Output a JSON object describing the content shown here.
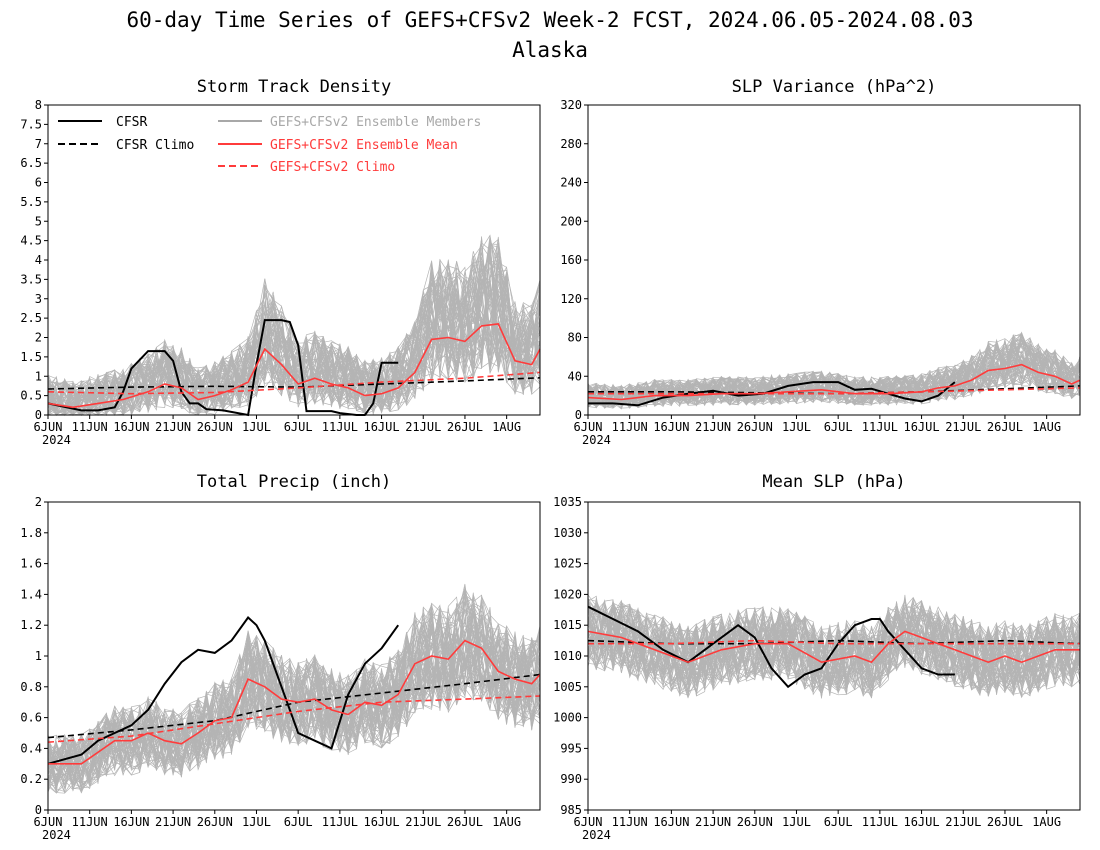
{
  "figure": {
    "title_line1": "60-day Time Series of GEFS+CFSv2 Week-2 FCST, 2024.06.05-2024.08.03",
    "title_line2": "Alaska"
  },
  "colors": {
    "cfsr": "#000000",
    "members": "#a8a8a8",
    "mean": "#ff3b3b",
    "clim_gefs": "#ff3b3b"
  },
  "legend": {
    "cfsr": "CFSR",
    "cfsr_climo": "CFSR Climo",
    "members": "GEFS+CFSv2 Ensemble Members",
    "mean": "GEFS+CFSv2 Ensemble Mean",
    "gefs_climo": "GEFS+CFSv2 Climo"
  },
  "chart_data": [
    {
      "type": "line",
      "title": "Storm Track Density",
      "x_ticks": [
        "6JUN",
        "11JUN",
        "16JUN",
        "21JUN",
        "26JUN",
        "1JUL",
        "6JUL",
        "11JUL",
        "16JUL",
        "21JUL",
        "26JUL",
        "1AUG"
      ],
      "x_year": "2024",
      "ylim": [
        0,
        8
      ],
      "y_ticks": [
        "0",
        "0.5",
        "1",
        "1.5",
        "2",
        "2.5",
        "3",
        "3.5",
        "4",
        "4.5",
        "5",
        "5.5",
        "6",
        "6.5",
        "7",
        "7.5",
        "8"
      ],
      "legend_position": "top-left",
      "series": [
        {
          "name": "CFSR",
          "day": [
            0,
            4,
            6,
            8,
            9,
            10,
            12,
            13,
            14,
            15,
            16,
            17,
            18,
            19,
            21,
            24,
            25,
            26,
            27,
            28,
            29,
            30,
            31,
            32,
            33,
            34,
            35,
            37,
            38,
            39,
            40,
            41,
            42,
            43,
            44,
            46
          ],
          "values": [
            0.3,
            0.12,
            0.12,
            0.2,
            0.6,
            1.2,
            1.65,
            1.65,
            1.65,
            1.4,
            0.6,
            0.3,
            0.3,
            0.15,
            0.12,
            0.0,
            1.3,
            2.45,
            2.45,
            2.45,
            2.4,
            1.8,
            0.1,
            0.1,
            0.1,
            0.1,
            0.05,
            0.0,
            0.0,
            0.3,
            1.35,
            1.35,
            1.35,
            null,
            null,
            null
          ]
        },
        {
          "name": "CFSR Climo",
          "day": [
            0,
            10,
            20,
            30,
            40,
            50,
            59
          ],
          "values": [
            0.67,
            0.72,
            0.74,
            0.72,
            0.8,
            0.88,
            0.96
          ]
        },
        {
          "name": "GEFS+CFSv2 Ensemble Mean",
          "day": [
            0,
            3,
            6,
            9,
            12,
            14,
            16,
            18,
            20,
            22,
            24,
            26,
            28,
            30,
            32,
            34,
            36,
            38,
            40,
            42,
            44,
            46,
            48,
            50,
            52,
            54,
            56,
            58,
            59
          ],
          "values": [
            0.3,
            0.2,
            0.3,
            0.4,
            0.6,
            0.8,
            0.7,
            0.4,
            0.5,
            0.65,
            0.85,
            1.7,
            1.3,
            0.8,
            0.95,
            0.8,
            0.7,
            0.5,
            0.55,
            0.7,
            1.1,
            1.95,
            2.0,
            1.9,
            2.3,
            2.35,
            1.4,
            1.3,
            1.7
          ]
        },
        {
          "name": "GEFS+CFSv2 Climo",
          "day": [
            0,
            10,
            20,
            30,
            40,
            50,
            59
          ],
          "values": [
            0.6,
            0.55,
            0.58,
            0.7,
            0.85,
            0.95,
            1.1
          ]
        }
      ]
    },
    {
      "type": "line",
      "title": "SLP Variance (hPa^2)",
      "x_ticks": [
        "6JUN",
        "11JUN",
        "16JUN",
        "21JUN",
        "26JUN",
        "1JUL",
        "6JUL",
        "11JUL",
        "16JUL",
        "21JUL",
        "26JUL",
        "1AUG"
      ],
      "x_year": "2024",
      "ylim": [
        0,
        320
      ],
      "y_ticks": [
        "0",
        "40",
        "80",
        "120",
        "160",
        "200",
        "240",
        "280",
        "320"
      ],
      "series": [
        {
          "name": "CFSR",
          "day": [
            0,
            3,
            6,
            9,
            12,
            15,
            18,
            21,
            24,
            27,
            30,
            32,
            34,
            36,
            38,
            40,
            42,
            44
          ],
          "values": [
            12,
            12,
            10,
            18,
            22,
            25,
            20,
            22,
            30,
            34,
            34,
            26,
            27,
            22,
            17,
            14,
            20,
            34
          ]
        },
        {
          "name": "CFSR Climo",
          "day": [
            0,
            10,
            20,
            30,
            40,
            50,
            59
          ],
          "values": [
            24,
            24,
            23,
            22,
            24,
            27,
            30
          ]
        },
        {
          "name": "GEFS+CFSv2 Ensemble Mean",
          "day": [
            0,
            4,
            8,
            12,
            16,
            20,
            24,
            28,
            32,
            36,
            40,
            42,
            44,
            46,
            48,
            50,
            52,
            54,
            56,
            58,
            59
          ],
          "values": [
            18,
            16,
            20,
            20,
            22,
            22,
            24,
            26,
            22,
            22,
            24,
            28,
            30,
            36,
            46,
            48,
            52,
            44,
            40,
            32,
            36
          ]
        },
        {
          "name": "GEFS+CFSv2 Climo",
          "day": [
            0,
            10,
            20,
            30,
            40,
            50,
            59
          ],
          "values": [
            22,
            22,
            22,
            22,
            24,
            26,
            28
          ]
        }
      ]
    },
    {
      "type": "line",
      "title": "Total Precip (inch)",
      "x_ticks": [
        "6JUN",
        "11JUN",
        "16JUN",
        "21JUN",
        "26JUN",
        "1JUL",
        "6JUL",
        "11JUL",
        "16JUL",
        "21JUL",
        "26JUL",
        "1AUG"
      ],
      "x_year": "2024",
      "ylim": [
        0,
        2
      ],
      "y_ticks": [
        "0",
        "0.2",
        "0.4",
        "0.6",
        "0.8",
        "1",
        "1.2",
        "1.4",
        "1.6",
        "1.8",
        "2"
      ],
      "series": [
        {
          "name": "CFSR",
          "day": [
            0,
            4,
            6,
            8,
            10,
            12,
            14,
            16,
            18,
            20,
            22,
            24,
            25,
            26,
            28,
            30,
            32,
            34,
            36,
            38,
            40,
            42
          ],
          "values": [
            0.3,
            0.36,
            0.45,
            0.5,
            0.55,
            0.65,
            0.82,
            0.96,
            1.04,
            1.02,
            1.1,
            1.25,
            1.2,
            1.1,
            0.8,
            0.5,
            0.45,
            0.4,
            0.75,
            0.95,
            1.05,
            1.2
          ]
        },
        {
          "name": "CFSR Climo",
          "day": [
            0,
            10,
            20,
            30,
            40,
            50,
            59
          ],
          "values": [
            0.47,
            0.52,
            0.58,
            0.7,
            0.76,
            0.82,
            0.88
          ]
        },
        {
          "name": "GEFS+CFSv2 Ensemble Mean",
          "day": [
            0,
            4,
            8,
            10,
            12,
            14,
            16,
            18,
            20,
            22,
            24,
            26,
            28,
            30,
            32,
            34,
            36,
            38,
            40,
            42,
            44,
            46,
            48,
            50,
            52,
            54,
            56,
            58,
            59
          ],
          "values": [
            0.3,
            0.3,
            0.45,
            0.45,
            0.5,
            0.45,
            0.43,
            0.5,
            0.58,
            0.6,
            0.85,
            0.8,
            0.72,
            0.7,
            0.72,
            0.65,
            0.62,
            0.7,
            0.68,
            0.75,
            0.95,
            1.0,
            0.98,
            1.1,
            1.05,
            0.9,
            0.85,
            0.82,
            0.88
          ]
        },
        {
          "name": "GEFS+CFSv2 Climo",
          "day": [
            0,
            10,
            20,
            30,
            40,
            50,
            59
          ],
          "values": [
            0.44,
            0.48,
            0.56,
            0.64,
            0.7,
            0.72,
            0.74
          ]
        }
      ]
    },
    {
      "type": "line",
      "title": "Mean SLP (hPa)",
      "x_ticks": [
        "6JUN",
        "11JUN",
        "16JUN",
        "21JUN",
        "26JUN",
        "1JUL",
        "6JUL",
        "11JUL",
        "16JUL",
        "21JUL",
        "26JUL",
        "1AUG"
      ],
      "x_year": "2024",
      "ylim": [
        985,
        1035
      ],
      "y_ticks": [
        "985",
        "990",
        "995",
        "1000",
        "1005",
        "1010",
        "1015",
        "1020",
        "1025",
        "1030",
        "1035"
      ],
      "series": [
        {
          "name": "CFSR",
          "day": [
            0,
            3,
            6,
            9,
            12,
            15,
            18,
            20,
            22,
            24,
            26,
            28,
            30,
            32,
            34,
            35,
            36,
            38,
            40,
            42,
            44
          ],
          "values": [
            1018,
            1016,
            1014,
            1011,
            1009,
            1012,
            1015,
            1013,
            1008,
            1005,
            1007,
            1008,
            1012,
            1015,
            1016,
            1016,
            1014,
            1011,
            1008,
            1007,
            1007
          ]
        },
        {
          "name": "CFSR Climo",
          "day": [
            0,
            10,
            20,
            30,
            40,
            50,
            59
          ],
          "values": [
            1012.5,
            1012,
            1012,
            1012.5,
            1012,
            1012.5,
            1012
          ]
        },
        {
          "name": "GEFS+CFSv2 Ensemble Mean",
          "day": [
            0,
            4,
            8,
            12,
            16,
            20,
            24,
            28,
            32,
            34,
            36,
            38,
            40,
            42,
            44,
            46,
            48,
            50,
            52,
            54,
            56,
            58,
            59
          ],
          "values": [
            1014,
            1013,
            1011,
            1009,
            1011,
            1012,
            1012,
            1009,
            1010,
            1009,
            1012,
            1014,
            1013,
            1012,
            1011,
            1010,
            1009,
            1010,
            1009,
            1010,
            1011,
            1011,
            1011
          ]
        },
        {
          "name": "GEFS+CFSv2 Climo",
          "day": [
            0,
            10,
            20,
            30,
            40,
            50,
            59
          ],
          "values": [
            1012,
            1012,
            1012.5,
            1012,
            1012,
            1012,
            1012
          ]
        }
      ]
    }
  ]
}
